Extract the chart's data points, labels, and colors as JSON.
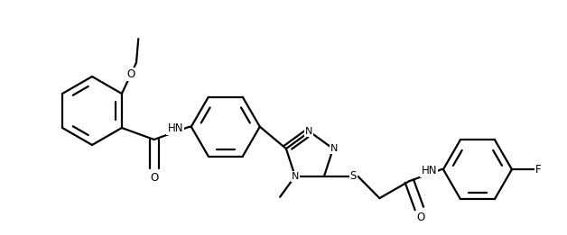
{
  "bg_color": "#ffffff",
  "line_color": "#000000",
  "line_width": 1.6,
  "font_size": 8.5,
  "figsize": [
    6.28,
    2.61
  ],
  "dpi": 100,
  "xlim": [
    0,
    6.28
  ],
  "ylim": [
    0,
    2.61
  ]
}
